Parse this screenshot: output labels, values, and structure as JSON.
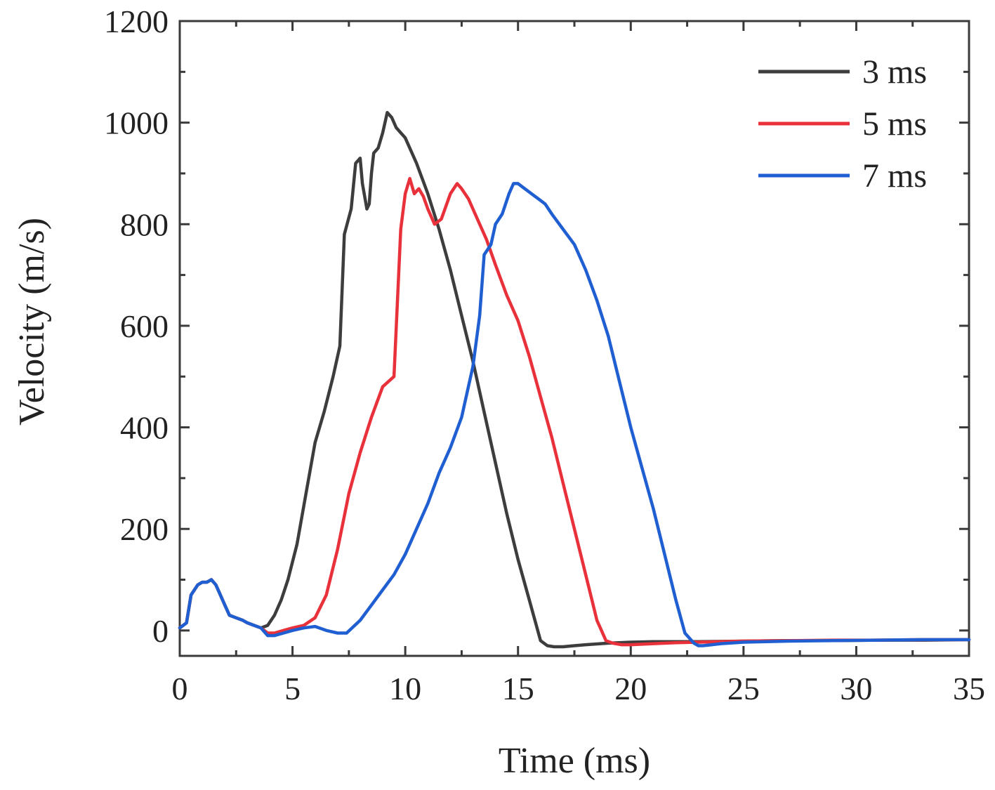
{
  "chart_data": {
    "type": "line",
    "title": "",
    "xlabel": "Time (ms)",
    "ylabel": "Velocity (m/s)",
    "xlim": [
      0,
      35
    ],
    "ylim": [
      -50,
      1200
    ],
    "xticks": [
      0,
      5,
      10,
      15,
      20,
      25,
      30,
      35
    ],
    "yticks": [
      0,
      200,
      400,
      600,
      800,
      1000,
      1200
    ],
    "xtick_labels": [
      "0",
      "5",
      "10",
      "15",
      "20",
      "25",
      "30",
      "35"
    ],
    "ytick_labels": [
      "0",
      "200",
      "400",
      "600",
      "800",
      "1000",
      "1200"
    ],
    "grid": false,
    "legend_position": "top-right",
    "series": [
      {
        "name": "3 ms",
        "color": "#3d3d3d",
        "x": [
          0,
          0.3,
          0.5,
          0.8,
          1.0,
          1.2,
          1.4,
          1.6,
          1.8,
          2.0,
          2.2,
          2.5,
          2.8,
          3.0,
          3.3,
          3.6,
          3.9,
          4.2,
          4.5,
          4.8,
          5.2,
          5.6,
          6.0,
          6.4,
          6.8,
          7.1,
          7.3,
          7.6,
          7.8,
          8.0,
          8.1,
          8.3,
          8.4,
          8.5,
          8.6,
          8.8,
          9.0,
          9.2,
          9.4,
          9.6,
          10.0,
          10.5,
          11.0,
          11.5,
          12.0,
          12.5,
          13.0,
          13.5,
          14.0,
          14.5,
          15.0,
          15.5,
          16.0,
          16.3,
          16.6,
          17.0,
          17.5,
          18.0,
          19.0,
          20.0,
          21.0,
          22.0,
          23.0,
          25.0,
          27.0,
          29.0,
          31.0,
          33.0,
          35.0
        ],
        "y": [
          5,
          15,
          70,
          90,
          95,
          95,
          100,
          90,
          70,
          50,
          30,
          25,
          20,
          15,
          10,
          5,
          10,
          30,
          60,
          100,
          170,
          270,
          370,
          430,
          500,
          560,
          780,
          830,
          920,
          930,
          880,
          830,
          840,
          900,
          940,
          950,
          980,
          1020,
          1010,
          990,
          970,
          920,
          860,
          790,
          710,
          620,
          530,
          430,
          330,
          230,
          140,
          60,
          -20,
          -30,
          -32,
          -32,
          -30,
          -28,
          -25,
          -23,
          -22,
          -22,
          -22,
          -21,
          -20,
          -20,
          -19,
          -19,
          -18
        ]
      },
      {
        "name": "5 ms",
        "color": "#e8313a",
        "x": [
          0,
          0.3,
          0.5,
          0.8,
          1.0,
          1.2,
          1.4,
          1.6,
          1.8,
          2.0,
          2.2,
          2.5,
          2.8,
          3.0,
          3.3,
          3.6,
          3.9,
          4.2,
          4.6,
          5.0,
          5.5,
          6.0,
          6.5,
          7.0,
          7.5,
          8.0,
          8.5,
          9.0,
          9.5,
          9.8,
          10.0,
          10.2,
          10.4,
          10.6,
          10.8,
          11.0,
          11.3,
          11.6,
          12.0,
          12.3,
          12.5,
          12.8,
          13.2,
          13.6,
          14.0,
          14.5,
          15.0,
          15.5,
          16.0,
          16.5,
          17.0,
          17.5,
          18.0,
          18.5,
          18.9,
          19.2,
          19.6,
          20.0,
          21.0,
          22.0,
          23.0,
          25.0,
          27.0,
          29.0,
          31.0,
          33.0,
          35.0
        ],
        "y": [
          5,
          15,
          70,
          90,
          95,
          95,
          100,
          90,
          70,
          50,
          30,
          25,
          20,
          15,
          10,
          5,
          -5,
          -5,
          0,
          5,
          10,
          25,
          70,
          160,
          270,
          350,
          420,
          480,
          500,
          790,
          860,
          890,
          860,
          870,
          855,
          830,
          800,
          810,
          860,
          880,
          870,
          850,
          810,
          770,
          720,
          660,
          610,
          540,
          460,
          380,
          290,
          200,
          110,
          20,
          -20,
          -25,
          -28,
          -28,
          -26,
          -24,
          -23,
          -21,
          -20,
          -19,
          -19,
          -18,
          -18
        ]
      },
      {
        "name": "7 ms",
        "color": "#1f5fd1",
        "x": [
          0,
          0.3,
          0.5,
          0.8,
          1.0,
          1.2,
          1.4,
          1.6,
          1.8,
          2.0,
          2.2,
          2.5,
          2.8,
          3.0,
          3.3,
          3.6,
          3.9,
          4.2,
          4.6,
          5.0,
          5.5,
          6.0,
          6.5,
          7.0,
          7.4,
          8.0,
          8.5,
          9.0,
          9.5,
          10.0,
          10.5,
          11.0,
          11.5,
          12.0,
          12.5,
          13.0,
          13.3,
          13.5,
          13.8,
          14.0,
          14.3,
          14.6,
          14.8,
          15.0,
          15.3,
          15.6,
          15.9,
          16.2,
          16.5,
          17.0,
          17.5,
          18.0,
          18.5,
          19.0,
          19.5,
          20.0,
          20.5,
          21.0,
          21.5,
          22.0,
          22.4,
          22.8,
          23.0,
          23.2,
          23.6,
          24.0,
          25.0,
          27.0,
          29.0,
          31.0,
          33.0,
          35.0
        ],
        "y": [
          5,
          15,
          70,
          90,
          95,
          95,
          100,
          90,
          70,
          50,
          30,
          25,
          20,
          15,
          10,
          5,
          -10,
          -10,
          -5,
          0,
          5,
          8,
          0,
          -5,
          -5,
          20,
          50,
          80,
          110,
          150,
          200,
          250,
          310,
          360,
          420,
          520,
          620,
          740,
          760,
          800,
          820,
          860,
          880,
          880,
          870,
          860,
          850,
          840,
          820,
          790,
          760,
          710,
          650,
          580,
          490,
          400,
          320,
          240,
          150,
          60,
          -5,
          -25,
          -30,
          -30,
          -28,
          -26,
          -23,
          -21,
          -20,
          -19,
          -18,
          -18
        ]
      }
    ]
  }
}
